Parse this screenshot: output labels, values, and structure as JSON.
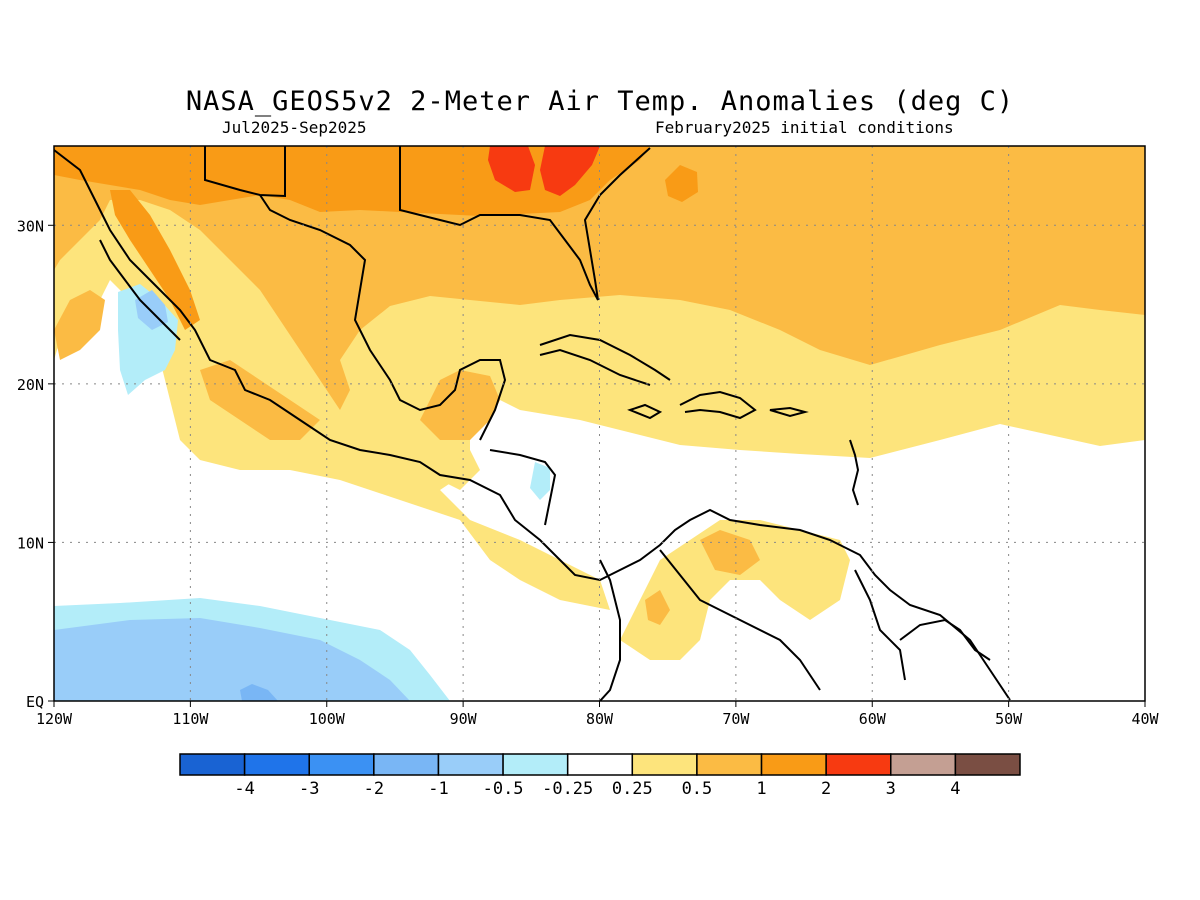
{
  "header": {
    "title": "NASA_GEOS5v2 2-Meter Air Temp. Anomalies (deg C)",
    "period": "Jul2025-Sep2025",
    "initial_conditions": "February2025 initial conditions"
  },
  "map": {
    "lon_range": [
      -120,
      -40
    ],
    "lat_range": [
      0,
      35
    ],
    "lon_ticks": [
      {
        "lon": -120,
        "label": "120W"
      },
      {
        "lon": -110,
        "label": "110W"
      },
      {
        "lon": -100,
        "label": "100W"
      },
      {
        "lon": -90,
        "label": "90W"
      },
      {
        "lon": -80,
        "label": "80W"
      },
      {
        "lon": -70,
        "label": "70W"
      },
      {
        "lon": -60,
        "label": "60W"
      },
      {
        "lon": -50,
        "label": "50W"
      },
      {
        "lon": -40,
        "label": "40W"
      }
    ],
    "lat_ticks": [
      {
        "lat": 30,
        "label": "30N"
      },
      {
        "lat": 20,
        "label": "20N"
      },
      {
        "lat": 10,
        "label": "10N"
      },
      {
        "lat": 0,
        "label": "EQ"
      }
    ],
    "grid": "dotted"
  },
  "legend": {
    "colors": [
      "#1963d3",
      "#1f74ea",
      "#3b91f3",
      "#79b6f5",
      "#99cdf9",
      "#b3edf9",
      "#ffffff",
      "#fde47c",
      "#fbbb44",
      "#f99b16",
      "#f73a11",
      "#c49f93",
      "#7a4e43"
    ],
    "labels": [
      "-4",
      "-3",
      "-2",
      "-1",
      "-0.5",
      "-0.25",
      "0.25",
      "0.5",
      "1",
      "2",
      "3",
      "4"
    ]
  }
}
